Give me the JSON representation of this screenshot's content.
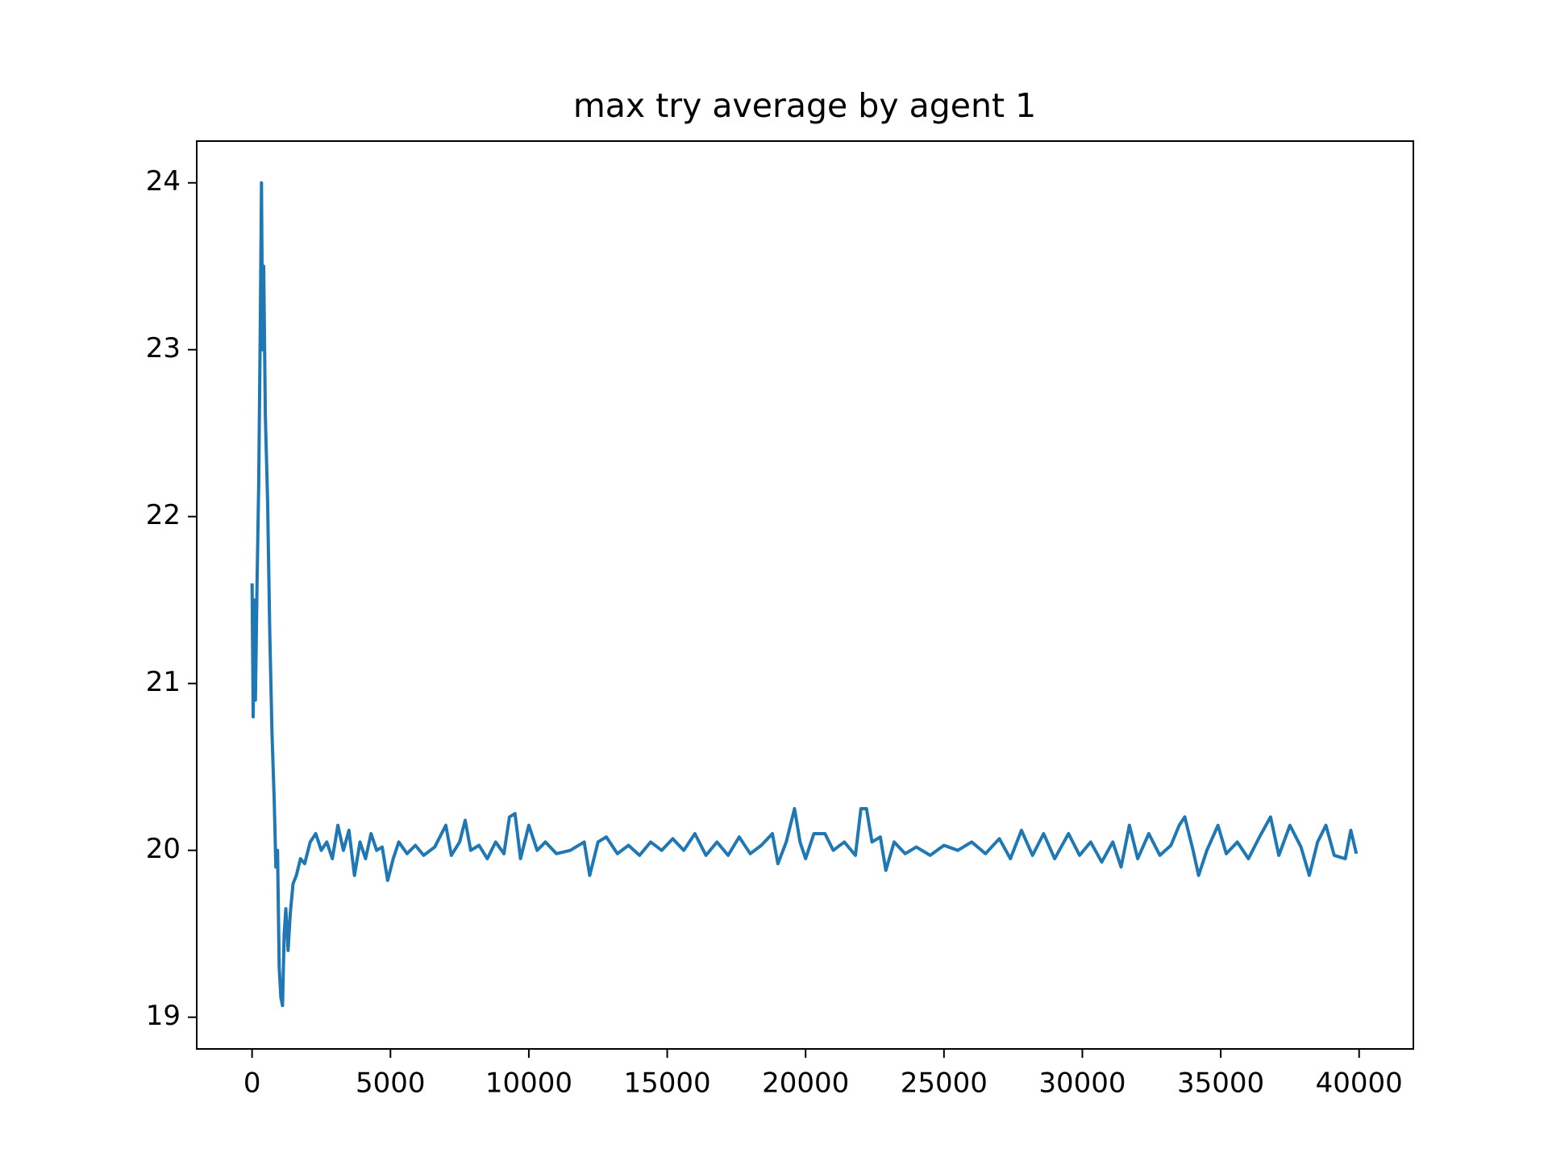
{
  "chart_data": {
    "type": "line",
    "title": "max try average by agent 1",
    "x": [
      0,
      40,
      80,
      120,
      180,
      240,
      300,
      340,
      380,
      420,
      480,
      560,
      640,
      720,
      800,
      860,
      920,
      980,
      1040,
      1100,
      1160,
      1220,
      1300,
      1380,
      1480,
      1600,
      1750,
      1900,
      2100,
      2300,
      2500,
      2700,
      2900,
      3100,
      3300,
      3500,
      3700,
      3900,
      4100,
      4300,
      4500,
      4700,
      4900,
      5100,
      5300,
      5600,
      5900,
      6200,
      6600,
      7000,
      7200,
      7500,
      7700,
      7900,
      8200,
      8500,
      8800,
      9100,
      9300,
      9500,
      9700,
      10000,
      10300,
      10600,
      11000,
      11500,
      12000,
      12200,
      12500,
      12800,
      13200,
      13600,
      14000,
      14400,
      14800,
      15200,
      15600,
      16000,
      16400,
      16800,
      17200,
      17600,
      18000,
      18400,
      18800,
      19000,
      19300,
      19600,
      19800,
      20000,
      20300,
      20700,
      21000,
      21400,
      21800,
      22000,
      22200,
      22400,
      22700,
      22900,
      23200,
      23600,
      24000,
      24500,
      25000,
      25500,
      26000,
      26500,
      27000,
      27400,
      27800,
      28200,
      28600,
      29000,
      29500,
      29900,
      30300,
      30700,
      31100,
      31400,
      31700,
      32000,
      32400,
      32800,
      33200,
      33500,
      33700,
      34000,
      34200,
      34500,
      34900,
      35200,
      35600,
      36000,
      36400,
      36800,
      37100,
      37500,
      37900,
      38200,
      38500,
      38800,
      39100,
      39500,
      39700,
      39900
    ],
    "values": [
      21.6,
      20.8,
      21.5,
      20.9,
      21.6,
      22.2,
      23.2,
      24.0,
      23.0,
      23.5,
      22.6,
      22.1,
      21.3,
      20.7,
      20.3,
      19.9,
      20.0,
      19.3,
      19.12,
      19.07,
      19.5,
      19.65,
      19.4,
      19.62,
      19.8,
      19.85,
      19.95,
      19.92,
      20.05,
      20.1,
      20.0,
      20.05,
      19.95,
      20.15,
      20.0,
      20.12,
      19.85,
      20.05,
      19.95,
      20.1,
      20.0,
      20.02,
      19.82,
      19.95,
      20.05,
      19.98,
      20.03,
      19.97,
      20.02,
      20.15,
      19.97,
      20.05,
      20.18,
      20.0,
      20.03,
      19.95,
      20.05,
      19.98,
      20.2,
      20.22,
      19.95,
      20.15,
      20.0,
      20.05,
      19.98,
      20.0,
      20.05,
      19.85,
      20.05,
      20.08,
      19.98,
      20.03,
      19.97,
      20.05,
      20.0,
      20.07,
      20.0,
      20.1,
      19.97,
      20.05,
      19.97,
      20.08,
      19.98,
      20.03,
      20.1,
      19.92,
      20.05,
      20.25,
      20.05,
      19.95,
      20.1,
      20.1,
      20.0,
      20.05,
      19.97,
      20.25,
      20.25,
      20.05,
      20.08,
      19.88,
      20.05,
      19.98,
      20.02,
      19.97,
      20.03,
      20.0,
      20.05,
      19.98,
      20.07,
      19.95,
      20.12,
      19.97,
      20.1,
      19.95,
      20.1,
      19.97,
      20.05,
      19.93,
      20.05,
      19.9,
      20.15,
      19.95,
      20.1,
      19.97,
      20.03,
      20.15,
      20.2,
      20.0,
      19.85,
      20.0,
      20.15,
      19.98,
      20.05,
      19.95,
      20.08,
      20.2,
      19.97,
      20.15,
      20.02,
      19.85,
      20.05,
      20.15,
      19.97,
      19.95,
      20.12,
      19.98
    ],
    "color": "#1f77b4",
    "xlim": [
      -2000,
      41960
    ],
    "xticks": [
      0,
      5000,
      10000,
      15000,
      20000,
      25000,
      30000,
      35000,
      40000
    ],
    "ylim": [
      18.81,
      24.25
    ],
    "yticks": [
      19,
      20,
      21,
      22,
      23,
      24
    ]
  }
}
